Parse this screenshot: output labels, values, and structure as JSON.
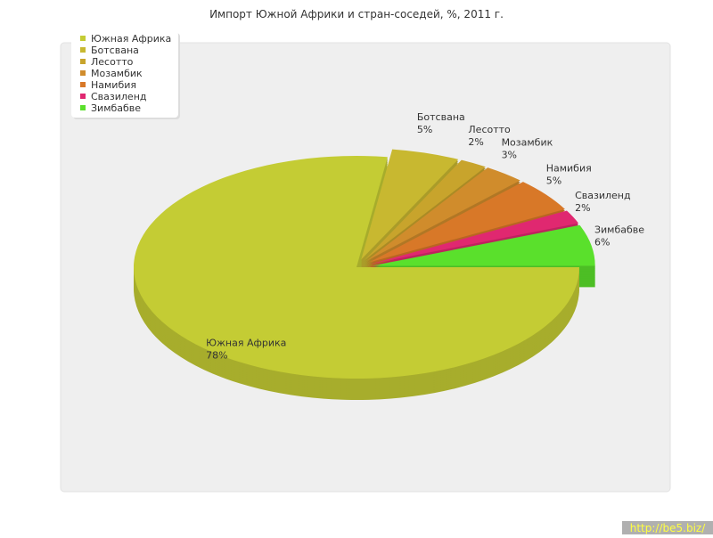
{
  "chart_data": {
    "type": "pie3d",
    "title": "Импорт Южной Африки и стран-соседей, %, 2011 г.",
    "categories": [
      "Южная Африка",
      "Ботсвана",
      "Лесотто",
      "Мозамбик",
      "Намибия",
      "Свазиленд",
      "Зимбабве"
    ],
    "values": [
      78,
      5,
      2,
      3,
      5,
      2,
      6
    ],
    "value_labels": [
      "78%",
      "5%",
      "2%",
      "3%",
      "5%",
      "2%",
      "6%"
    ],
    "colors": [
      "#c4cc34",
      "#c8b830",
      "#c8a42c",
      "#d08c2c",
      "#d87828",
      "#e02870",
      "#5ae02c"
    ],
    "legend": "top-left"
  },
  "watermark": "http://be5.biz/"
}
